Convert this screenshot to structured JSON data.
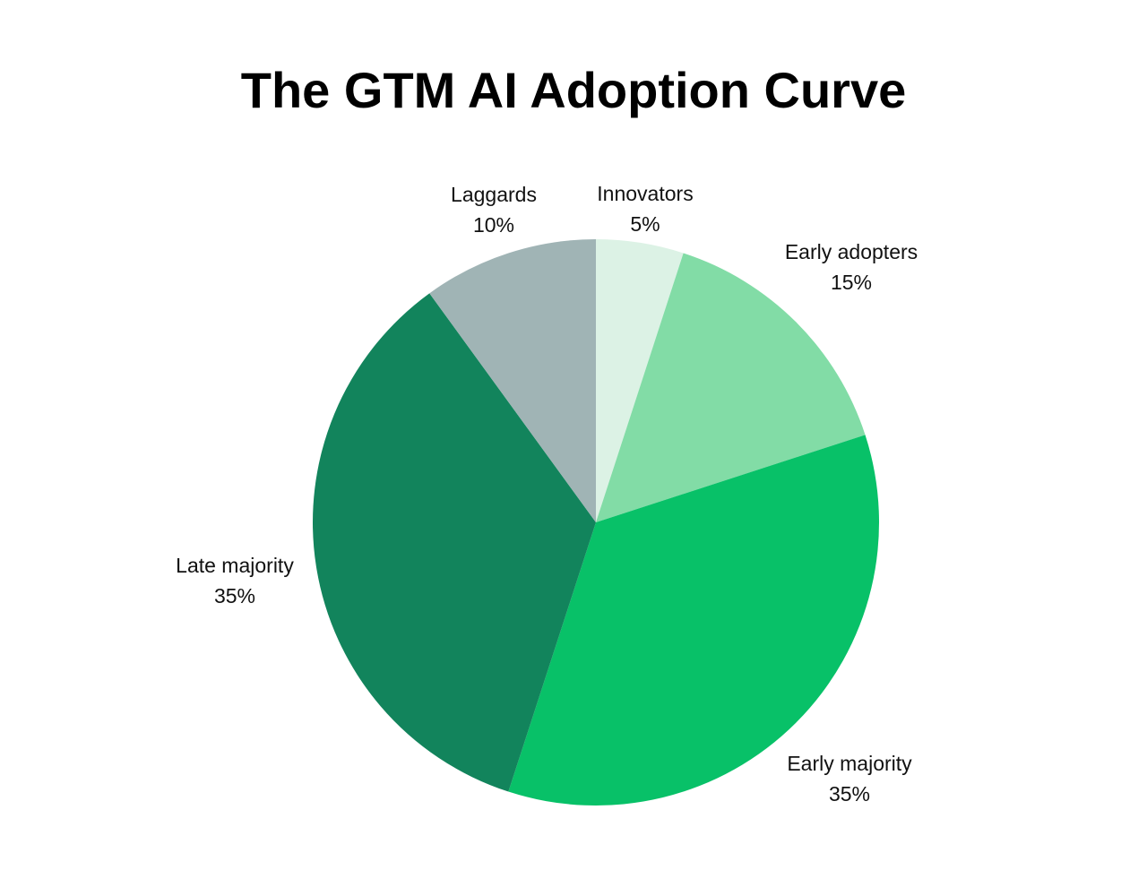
{
  "chart_data": {
    "type": "pie",
    "title": "The GTM AI Adoption Curve",
    "slices": [
      {
        "label": "Innovators",
        "value": 5,
        "value_label": "5%",
        "color": "#dcf2e5"
      },
      {
        "label": "Early adopters",
        "value": 15,
        "value_label": "15%",
        "color": "#82dca6"
      },
      {
        "label": "Early majority",
        "value": 35,
        "value_label": "35%",
        "color": "#08c168"
      },
      {
        "label": "Late majority",
        "value": 35,
        "value_label": "35%",
        "color": "#12845c"
      },
      {
        "label": "Laggards",
        "value": 10,
        "value_label": "10%",
        "color": "#a0b4b5"
      }
    ],
    "start_angle": "12 o'clock",
    "direction": "clockwise",
    "legend": "none",
    "labels": "outside"
  }
}
